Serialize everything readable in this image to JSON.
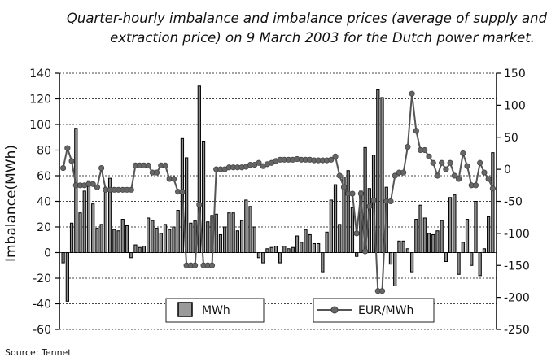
{
  "chart_data": {
    "type": "bar+line",
    "title_lines": [
      "Quarter-hourly imbalance and imbalance prices (average of supply and",
      "extraction price) on 9 March 2003 for the Dutch power market."
    ],
    "ylabel": "Imbalance(MWh)",
    "ylim": [
      -60,
      140
    ],
    "y_ticks": [
      140,
      120,
      100,
      80,
      60,
      40,
      20,
      0,
      -20,
      -40,
      -60
    ],
    "y_tick_labels": [
      "140",
      "120",
      "100",
      "80",
      "60",
      "40",
      "20",
      "0",
      "-20",
      "-40",
      "-60"
    ],
    "y2lim": [
      -250,
      150
    ],
    "y2_ticks": [
      150,
      100,
      50,
      0,
      -50,
      -100,
      -150,
      -200,
      -250
    ],
    "y2_tick_labels": [
      "150",
      "100",
      "50",
      "0",
      "-50",
      "-100",
      "-150",
      "-200",
      "-250"
    ],
    "grid": true,
    "legend": [
      {
        "name": "MWh",
        "marker": "bar"
      },
      {
        "name": "EUR/MWh",
        "marker": "line-dot"
      }
    ],
    "source": "Source:  Tennet",
    "series": [
      {
        "name": "MWh",
        "kind": "bar",
        "values": [
          -8,
          -38,
          23,
          97,
          31,
          48,
          56,
          38,
          19,
          22,
          51,
          58,
          18,
          17,
          26,
          21,
          -4,
          6,
          4,
          5,
          27,
          25,
          19,
          15,
          22,
          18,
          20,
          33,
          89,
          74,
          23,
          25,
          130,
          87,
          24,
          29,
          30,
          14,
          20,
          31,
          31,
          17,
          25,
          41,
          36,
          20,
          -4,
          -8,
          3,
          4,
          5,
          -8,
          5,
          3,
          4,
          13,
          8,
          18,
          14,
          7,
          7,
          -15,
          16,
          41,
          53,
          22,
          59,
          64,
          35,
          -3,
          48,
          82,
          50,
          76,
          127,
          121,
          51,
          -9,
          -26,
          9,
          9,
          3,
          -15,
          26,
          37,
          27,
          15,
          14,
          17,
          25,
          -7,
          43,
          45,
          -17,
          8,
          26,
          -10,
          40,
          -18,
          3,
          28,
          78
        ]
      },
      {
        "name": "EUR/MWh",
        "kind": "line",
        "values": [
          2,
          33,
          13,
          -25,
          -25,
          -25,
          -23,
          -23,
          -28,
          2,
          -32,
          -32,
          -32,
          -32,
          -32,
          -32,
          -32,
          6,
          6,
          6,
          6,
          -5,
          -5,
          6,
          6,
          -15,
          -15,
          -35,
          -35,
          -150,
          -150,
          -150,
          -55,
          -150,
          -150,
          -150,
          0,
          0,
          0,
          3,
          3,
          3,
          3,
          4,
          7,
          7,
          10,
          5,
          8,
          10,
          13,
          15,
          15,
          15,
          15,
          16,
          15,
          15,
          15,
          14,
          14,
          14,
          14,
          15,
          20,
          -10,
          -28,
          -38,
          -38,
          -100,
          -38,
          -128,
          -58,
          -48,
          -190,
          -190,
          -50,
          -50,
          -10,
          -5,
          -5,
          35,
          118,
          60,
          30,
          30,
          20,
          10,
          -10,
          10,
          0,
          10,
          -10,
          -15,
          25,
          5,
          -25,
          -25,
          10,
          -5,
          -15,
          -30
        ]
      }
    ]
  }
}
